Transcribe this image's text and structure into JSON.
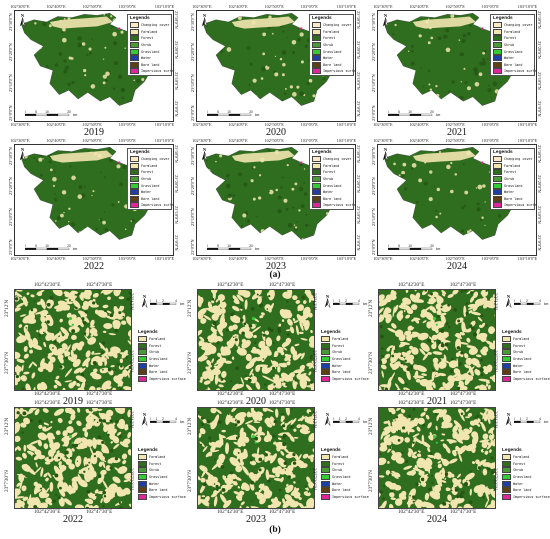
{
  "colors": {
    "forest": "#2f6e1f",
    "forest_dark": "#245515",
    "farmland": "#f2e6b0",
    "shrub": "#4a9a35",
    "grass": "#33cc33",
    "water": "#1e3fa8",
    "bare": "#5e4012",
    "impervious": "#e0249a"
  },
  "top_panels": {
    "x_ticks": [
      "102°30'0\"E",
      "102°40'0\"E",
      "102°50'0\"E",
      "103°0'0\"E",
      "103°10'0\"E"
    ],
    "y_ticks": [
      "23°30'0\"N",
      "23°20'0\"N",
      "23°10'0\"N",
      "23°0'0\"N"
    ],
    "north_label": "N",
    "legend_title": "Legends",
    "legend_items": [
      {
        "label": "Changing cover",
        "color": "#fde8c8"
      },
      {
        "label": "Farmland",
        "color": "#f2e6b0"
      },
      {
        "label": "Forest",
        "color": "#2f6e1f"
      },
      {
        "label": "Shrub",
        "color": "#4a9a35"
      },
      {
        "label": "Grassland",
        "color": "#33cc33"
      },
      {
        "label": "Water",
        "color": "#1e3fa8"
      },
      {
        "label": "Bare land",
        "color": "#5e4012"
      },
      {
        "label": "Impervious surface",
        "color": "#e0249a"
      }
    ],
    "years": [
      "2019",
      "2020",
      "2021",
      "2022",
      "2023",
      "2024"
    ],
    "scale_labels": [
      "0",
      "5",
      "10",
      "20",
      "km"
    ]
  },
  "caption_a": "(a)",
  "bottom_panels": {
    "x_ticks": [
      "102°42'30\"E",
      "102°47'30\"E"
    ],
    "y_ticks": [
      "23°12'N",
      "23°7'30\"N"
    ],
    "north_label": "N",
    "legend_title": "Legends",
    "legend_items": [
      {
        "label": "Farmland",
        "color": "#f2e6b0"
      },
      {
        "label": "Forest",
        "color": "#2f6e1f"
      },
      {
        "label": "Shrub",
        "color": "#4a9a35"
      },
      {
        "label": "Grassland",
        "color": "#33cc33"
      },
      {
        "label": "Water",
        "color": "#1e3fa8"
      },
      {
        "label": "Bare land",
        "color": "#5e4012"
      },
      {
        "label": "Impervious surface",
        "color": "#e0249a"
      }
    ],
    "years": [
      "2019",
      "2020",
      "2021",
      "2022",
      "2023",
      "2024"
    ],
    "scale_labels": [
      "0",
      "1",
      "2",
      "4",
      "km"
    ]
  },
  "caption_b": "(b)"
}
